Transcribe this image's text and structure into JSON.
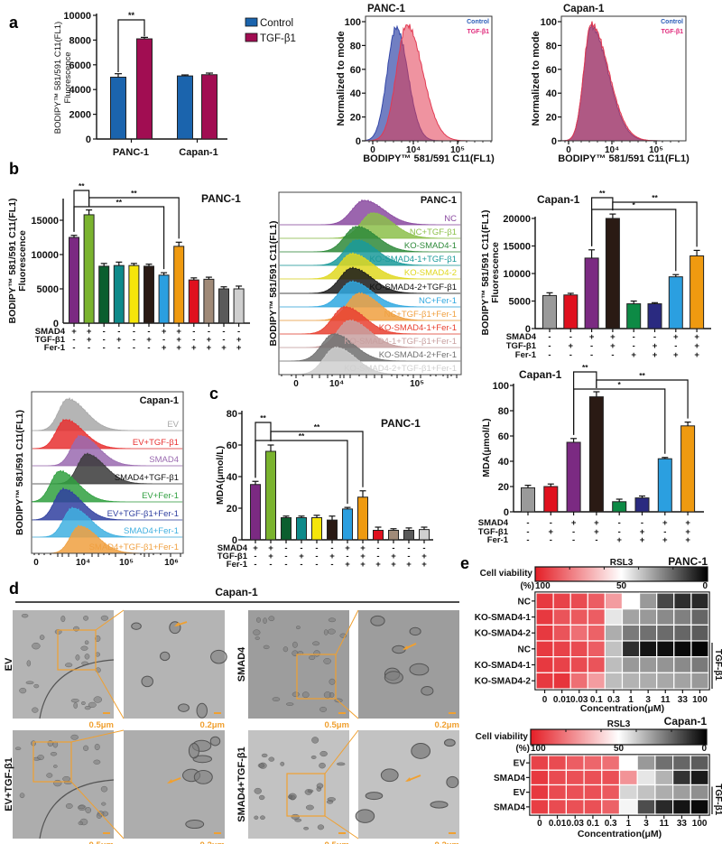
{
  "panel_labels": {
    "a": "a",
    "b": "b",
    "c": "c",
    "d": "d",
    "e": "e"
  },
  "chart_data": [
    {
      "id": "a-bar-chart",
      "type": "bar",
      "categories": [
        "PANC-1",
        "Capan-1"
      ],
      "series": [
        {
          "name": "Control",
          "color": "#1b64ad",
          "values": [
            5000,
            5100
          ],
          "errors": [
            280,
            80
          ]
        },
        {
          "name": "TGF-β1",
          "color": "#a10d52",
          "values": [
            8100,
            5200
          ],
          "errors": [
            120,
            130
          ]
        }
      ],
      "ylabel": [
        "BODIPY™ 581/591 C11(FL1)",
        "Fluorescence"
      ],
      "ylim": [
        0,
        10000
      ],
      "yticks": [
        "0",
        "2000",
        "4000",
        "6000",
        "8000",
        "10000"
      ],
      "significance": [
        {
          "category": 0,
          "label": "**"
        }
      ]
    },
    {
      "id": "a-flow-panc1",
      "type": "histogram",
      "title": "PANC-1",
      "xlabel": "BODIPY™ 581/591 C11(FL1)",
      "ylabel": "Normalized to mode",
      "xticks": [
        "0",
        "10⁴",
        "10⁵"
      ],
      "yticks": [
        "0",
        "20",
        "40",
        "60",
        "80",
        "100"
      ],
      "series": [
        {
          "name": "Control",
          "color": "#3448a8",
          "label_color": "#2b5db8",
          "peak": 0.58,
          "width": [
            0.32,
            0.4
          ],
          "height": 95
        },
        {
          "name": "TGF-β1",
          "color": "#e23a52",
          "label_color": "#e0287a",
          "peak": 0.84,
          "width": [
            0.36,
            0.55
          ],
          "height": 97
        }
      ]
    },
    {
      "id": "a-flow-capan1",
      "type": "histogram",
      "title": "Capan-1",
      "xlabel": "BODIPY™ 581/591 C11(FL1)",
      "ylabel": "Normalized to mode",
      "xticks": [
        "0",
        "10⁴",
        "10⁵"
      ],
      "yticks": [
        "0",
        "20",
        "40",
        "60",
        "80",
        "100"
      ],
      "series": [
        {
          "name": "Control",
          "color": "#3448a8",
          "label_color": "#2b5db8",
          "peak": 0.52,
          "width": [
            0.24,
            0.55
          ],
          "height": 96
        },
        {
          "name": "TGF-β1",
          "color": "#e23a52",
          "label_color": "#e0287a",
          "peak": 0.52,
          "width": [
            0.24,
            0.57
          ],
          "height": 98
        }
      ]
    },
    {
      "id": "b-bar-panc1",
      "type": "bar",
      "title": "PANC-1",
      "ylabel": [
        "BODIPY™ 581/591 C11(FL1)",
        "Fluorescence"
      ],
      "ylim": [
        0,
        18000
      ],
      "yticks": [
        "5000",
        "10000",
        "15000"
      ],
      "ytick_values": [
        5000,
        10000,
        15000
      ],
      "zero_label": "0",
      "values": [
        12500,
        15800,
        8300,
        8400,
        8400,
        8300,
        7000,
        11200,
        6300,
        6400,
        5000,
        5000
      ],
      "errors": [
        300,
        700,
        400,
        500,
        300,
        300,
        350,
        600,
        300,
        300,
        300,
        400
      ],
      "colors": [
        "#7b2a82",
        "#7ab32e",
        "#0b5e2e",
        "#0e8a8a",
        "#f5e50a",
        "#2a1a14",
        "#2b9fe0",
        "#ef9a10",
        "#e0101e",
        "#a08a78",
        "#5a5a5a",
        "#cfcfcf"
      ],
      "conditions": [
        {
          "name": "SMAD4",
          "values": [
            "+",
            "+",
            "-",
            "-",
            "-",
            "-",
            "+",
            "+",
            "-",
            "-",
            "-",
            "-"
          ]
        },
        {
          "name": "TGF-β1",
          "values": [
            "-",
            "+",
            "-",
            "+",
            "-",
            "+",
            "-",
            "+",
            "-",
            "+",
            "-",
            "+"
          ]
        },
        {
          "name": "Fer-1",
          "values": [
            "-",
            "-",
            "-",
            "-",
            "-",
            "-",
            "+",
            "+",
            "+",
            "+",
            "+",
            "+"
          ]
        }
      ],
      "significance": [
        {
          "from": 0,
          "to": 1,
          "label": "**"
        },
        {
          "from": 0,
          "to": 6,
          "label": "**"
        },
        {
          "from": 1,
          "to": 7,
          "label": "**"
        }
      ]
    },
    {
      "id": "b-flow-panc1",
      "type": "histogram-stack",
      "title": "PANC-1",
      "ylabel": "BODIPY™ 581/591 C11(FL1)",
      "xticks": [
        "0",
        "10⁴",
        "10⁵"
      ],
      "series": [
        {
          "name": "NC",
          "color": "#8a4aa0",
          "peak": 1.34,
          "height": 27
        },
        {
          "name": "NC+TGF-β1",
          "color": "#8cc04a",
          "peak": 1.45,
          "height": 28
        },
        {
          "name": "KO-SMAD4-1",
          "color": "#2e8a3a",
          "peak": 1.25,
          "height": 28
        },
        {
          "name": "KO-SMAD4-1+TGF-β1",
          "color": "#1a9a9a",
          "peak": 1.25,
          "height": 28
        },
        {
          "name": "KO-SMAD4-2",
          "color": "#e0d820",
          "peak": 1.19,
          "height": 28
        },
        {
          "name": "KO-SMAD4-2+TGF-β1",
          "color": "#1a1a1a",
          "peak": 1.19,
          "height": 28
        },
        {
          "name": "NC+Fer-1",
          "color": "#30a8e0",
          "peak": 1.19,
          "height": 28
        },
        {
          "name": "NC+TGF-β1+Fer-1",
          "color": "#f0a040",
          "peak": 1.28,
          "height": 30
        },
        {
          "name": "KO-SMAD4-1+Fer-1",
          "color": "#e84030",
          "peak": 1.1,
          "height": 30
        },
        {
          "name": "KO-SMAD4-1+TGF-β1+Fer-1",
          "color": "#c8a0a0",
          "peak": 1.16,
          "height": 30
        },
        {
          "name": "KO-SMAD4-2+Fer-1",
          "color": "#707070",
          "peak": 0.93,
          "height": 30
        },
        {
          "name": "KO-SMAD4-2+TGF-β1+Fer-1",
          "color": "#cfcfcf",
          "peak": 0.98,
          "height": 30
        }
      ]
    },
    {
      "id": "b-bar-capan1",
      "type": "bar",
      "title": "Capan-1",
      "ylabel": [
        "BODIPY™ 581/591 C11(FL1)",
        "Fluorescence"
      ],
      "ylim": [
        0,
        20000
      ],
      "yticks": [
        "0",
        "5000",
        "10000",
        "15000",
        "20000"
      ],
      "ytick_values": [
        0,
        5000,
        10000,
        15000,
        20000
      ],
      "values": [
        6000,
        6100,
        12800,
        20000,
        4500,
        4500,
        9400,
        13200
      ],
      "errors": [
        500,
        300,
        1500,
        800,
        500,
        200,
        400,
        1000
      ],
      "colors": [
        "#9a9a9a",
        "#e0101e",
        "#7b2a82",
        "#2a1a14",
        "#0d8a45",
        "#2a2a80",
        "#2b9fe0",
        "#ef9a10"
      ],
      "conditions": [
        {
          "name": "SMAD4",
          "values": [
            "-",
            "-",
            "+",
            "+",
            "-",
            "-",
            "+",
            "+"
          ]
        },
        {
          "name": "TGF-β1",
          "values": [
            "-",
            "+",
            "-",
            "+",
            "-",
            "+",
            "-",
            "+"
          ]
        },
        {
          "name": "Fer-1",
          "values": [
            "-",
            "-",
            "-",
            "-",
            "+",
            "+",
            "+",
            "+"
          ]
        }
      ],
      "significance": [
        {
          "from": 2,
          "to": 3,
          "label": "**"
        },
        {
          "from": 2,
          "to": 6,
          "label": "*"
        },
        {
          "from": 3,
          "to": 7,
          "label": "**"
        }
      ]
    },
    {
      "id": "b-flow-capan1",
      "type": "histogram-stack",
      "title": "Capan-1",
      "ylabel": "BODIPY™ 581/591 C11(FL1)",
      "xticks": [
        "0",
        "10⁴",
        "10⁵",
        "10⁶"
      ],
      "series": [
        {
          "name": "EV",
          "color": "#a8a8a8",
          "peak": 0.67,
          "height": 35
        },
        {
          "name": "EV+TGF-β1",
          "color": "#e83030",
          "peak": 0.62,
          "height": 32
        },
        {
          "name": "SMAD4",
          "color": "#9a6ab0",
          "peak": 0.94,
          "height": 33
        },
        {
          "name": "SMAD4+TGF-β1",
          "color": "#3a3a3a",
          "peak": 1.08,
          "height": 33
        },
        {
          "name": "EV+Fer-1",
          "color": "#30a040",
          "peak": 0.5,
          "height": 34
        },
        {
          "name": "EV+TGF-β1+Fer-1",
          "color": "#3040a0",
          "peak": 0.58,
          "height": 34
        },
        {
          "name": "SMAD4+Fer-1",
          "color": "#40b0e0",
          "peak": 0.77,
          "height": 32
        },
        {
          "name": "SMAD4+TGF-β1+Fer-1",
          "color": "#f0a040",
          "peak": 0.92,
          "height": 30
        }
      ]
    },
    {
      "id": "c-bar-panc1",
      "type": "bar",
      "title": "PANC-1",
      "ylabel": [
        "MDA(μmol/L)"
      ],
      "ylim": [
        0,
        80
      ],
      "yticks": [
        "0",
        "20",
        "40",
        "60",
        "80"
      ],
      "ytick_values": [
        0,
        20,
        40,
        60,
        80
      ],
      "values": [
        35,
        56,
        14,
        14,
        14,
        12.5,
        19.5,
        27,
        6,
        6,
        6,
        6.5
      ],
      "errors": [
        2,
        4,
        1,
        1,
        1.5,
        2.5,
        1,
        4,
        2,
        1,
        1.5,
        1.5
      ],
      "colors": [
        "#7b2a82",
        "#7ab32e",
        "#0b5e2e",
        "#0e8a8a",
        "#f5e50a",
        "#2a1a14",
        "#2b9fe0",
        "#ef9a10",
        "#e0101e",
        "#a08a78",
        "#5a5a5a",
        "#cfcfcf"
      ],
      "conditions": [
        {
          "name": "SMAD4",
          "values": [
            "+",
            "+",
            "-",
            "-",
            "-",
            "-",
            "+",
            "+",
            "-",
            "-",
            "-",
            "-"
          ]
        },
        {
          "name": "TGF-β1",
          "values": [
            "-",
            "+",
            "-",
            "+",
            "-",
            "+",
            "-",
            "+",
            "-",
            "+",
            "-",
            "+"
          ]
        },
        {
          "name": "Fer-1",
          "values": [
            "-",
            "-",
            "-",
            "-",
            "-",
            "-",
            "+",
            "+",
            "+",
            "+",
            "+",
            "+"
          ]
        }
      ],
      "significance": [
        {
          "from": 0,
          "to": 1,
          "label": "**"
        },
        {
          "from": 0,
          "to": 6,
          "label": "**"
        },
        {
          "from": 1,
          "to": 7,
          "label": "**"
        }
      ]
    },
    {
      "id": "c-bar-capan1",
      "type": "bar",
      "title": "Capan-1",
      "ylabel": [
        "MDA(μmol/L)"
      ],
      "ylim": [
        0,
        100
      ],
      "yticks": [
        "0",
        "20",
        "40",
        "60",
        "80",
        "100"
      ],
      "ytick_values": [
        0,
        20,
        40,
        60,
        80,
        100
      ],
      "values": [
        19,
        20,
        55,
        91,
        8,
        11,
        42,
        68
      ],
      "errors": [
        2,
        2,
        3,
        4,
        2,
        1.5,
        1,
        3
      ],
      "colors": [
        "#9a9a9a",
        "#e0101e",
        "#7b2a82",
        "#2a1a14",
        "#0d8a45",
        "#2a2a80",
        "#2b9fe0",
        "#ef9a10"
      ],
      "conditions": [
        {
          "name": "SMAD4",
          "values": [
            "-",
            "-",
            "+",
            "+",
            "-",
            "-",
            "+",
            "+"
          ]
        },
        {
          "name": "TGF-β1",
          "values": [
            "-",
            "+",
            "-",
            "+",
            "-",
            "+",
            "-",
            "+"
          ]
        },
        {
          "name": "Fer-1",
          "values": [
            "-",
            "-",
            "-",
            "-",
            "+",
            "+",
            "+",
            "+"
          ]
        }
      ],
      "significance": [
        {
          "from": 2,
          "to": 3,
          "label": "**"
        },
        {
          "from": 2,
          "to": 6,
          "label": "*"
        },
        {
          "from": 3,
          "to": 7,
          "label": "**"
        }
      ]
    },
    {
      "id": "e-heatmap-panc1",
      "type": "heatmap",
      "title": "PANC-1",
      "compound": "RSL3",
      "colorbar_label": [
        "Cell viability",
        "(%)"
      ],
      "colorbar_ticks": [
        "100",
        "50",
        "0"
      ],
      "xlabel": "Concentration(μM)",
      "xticks": [
        "0",
        "0.01",
        "0.03",
        "0.1",
        "0.3",
        "1",
        "3",
        "11",
        "33",
        "100"
      ],
      "rows": [
        "NC",
        "KO-SMAD4-1",
        "KO-SMAD4-2",
        "NC",
        "KO-SMAD4-1",
        "KO-SMAD4-2"
      ],
      "group_label": "TGF-β1",
      "group_rows": [
        3,
        5
      ],
      "values": [
        [
          94,
          92,
          90,
          86,
          72,
          50,
          30,
          14,
          9,
          8
        ],
        [
          94,
          88,
          87,
          86,
          45,
          32,
          30,
          27,
          25,
          20
        ],
        [
          94,
          88,
          82,
          85,
          34,
          24,
          22,
          21,
          20,
          18
        ],
        [
          94,
          92,
          90,
          86,
          38,
          9,
          4,
          3,
          2,
          1
        ],
        [
          94,
          92,
          90,
          88,
          37,
          30,
          30,
          29,
          27,
          24
        ],
        [
          94,
          95,
          82,
          72,
          37,
          35,
          34,
          33,
          32,
          30
        ]
      ]
    },
    {
      "id": "e-heatmap-capan1",
      "type": "heatmap",
      "title": "Capan-1",
      "compound": "RSL3",
      "colorbar_label": [
        "Cell viability",
        "(%)"
      ],
      "colorbar_ticks": [
        "100",
        "50",
        "0"
      ],
      "xlabel": "Concentration(μM)",
      "xticks": [
        "0",
        "0.01",
        "0.03",
        "0.1",
        "0.3",
        "1",
        "3",
        "11",
        "33",
        "100"
      ],
      "rows": [
        "EV",
        "SMAD4",
        "EV",
        "SMAD4"
      ],
      "group_label": "TGF-β1",
      "group_rows": [
        2,
        3
      ],
      "values": [
        [
          92,
          90,
          86,
          84,
          82,
          50,
          30,
          22,
          20,
          18
        ],
        [
          94,
          90,
          89,
          89,
          89,
          74,
          45,
          35,
          10,
          5
        ],
        [
          94,
          90,
          89,
          89,
          87,
          42,
          38,
          34,
          31,
          28
        ],
        [
          93,
          90,
          89,
          89,
          85,
          48,
          15,
          8,
          4,
          2
        ]
      ]
    }
  ],
  "tem": {
    "title": "Capan-1",
    "scale_low": "0.5μm",
    "scale_high": "0.2μm",
    "rows": [
      {
        "label": "EV"
      },
      {
        "label": "EV+TGF-β1"
      },
      {
        "label": "SMAD4"
      },
      {
        "label": "SMAD4+TGF-β1"
      }
    ],
    "accent": "#f0a030"
  }
}
